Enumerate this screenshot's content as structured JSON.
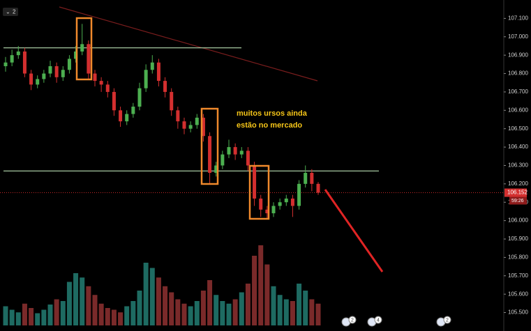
{
  "chart_data": {
    "type": "candlestick",
    "tag": "2",
    "annotations": [
      "muitos ursos ainda",
      "estão no mercado"
    ],
    "last_price_label": "106.152",
    "countdown": "59:26",
    "event_badges": [
      "2",
      "4",
      "2"
    ],
    "levels": [
      106.94,
      106.27
    ],
    "up_color": "#4caf50",
    "down_color": "#d32f2f",
    "volume_up_color": "#1e6b62",
    "volume_down_color": "#7a2a2a",
    "ylim": [
      105.43,
      107.2
    ],
    "yticks": [
      {
        "value": 107.1,
        "label": "107.100"
      },
      {
        "value": 107.0,
        "label": "107.000"
      },
      {
        "value": 106.9,
        "label": "106.900"
      },
      {
        "value": 106.8,
        "label": "106.800"
      },
      {
        "value": 106.7,
        "label": "106.700"
      },
      {
        "value": 106.6,
        "label": "106.600"
      },
      {
        "value": 106.5,
        "label": "106.500"
      },
      {
        "value": 106.4,
        "label": "106.400"
      },
      {
        "value": 106.3,
        "label": "106.300"
      },
      {
        "value": 106.2,
        "label": "106.200"
      },
      {
        "value": 106.1,
        "label": "106.100"
      },
      {
        "value": 106.0,
        "label": "106.000"
      },
      {
        "value": 105.9,
        "label": "105.900"
      },
      {
        "value": 105.8,
        "label": "105.800"
      },
      {
        "value": 105.7,
        "label": "105.700"
      },
      {
        "value": 105.6,
        "label": "105.600"
      },
      {
        "value": 105.5,
        "label": "105.500"
      }
    ],
    "open": [
      106.84,
      106.86,
      106.9,
      106.92,
      106.8,
      106.74,
      106.77,
      106.8,
      106.84,
      106.78,
      106.82,
      106.88,
      106.92,
      106.96,
      106.8,
      106.76,
      106.74,
      106.7,
      106.6,
      106.54,
      106.58,
      106.62,
      106.72,
      106.82,
      106.86,
      106.76,
      106.7,
      106.6,
      106.54,
      106.5,
      106.52,
      106.56,
      106.46,
      106.26,
      106.3,
      106.36,
      106.4,
      106.36,
      106.38,
      106.3,
      106.12,
      106.06,
      106.04,
      106.08,
      106.1,
      106.12,
      106.08,
      106.2,
      106.26,
      106.2
    ],
    "high": [
      106.89,
      106.93,
      106.95,
      106.94,
      106.82,
      106.79,
      106.82,
      106.87,
      106.86,
      106.84,
      106.9,
      106.95,
      107.07,
      106.98,
      106.82,
      106.78,
      106.76,
      106.72,
      106.62,
      106.6,
      106.64,
      106.75,
      106.85,
      106.9,
      106.88,
      106.78,
      106.72,
      106.62,
      106.56,
      106.54,
      106.58,
      106.58,
      106.48,
      106.32,
      106.38,
      106.44,
      106.42,
      106.4,
      106.4,
      106.32,
      106.14,
      106.08,
      106.1,
      106.12,
      106.14,
      106.14,
      106.22,
      106.3,
      106.28,
      106.21
    ],
    "low": [
      106.81,
      106.84,
      106.88,
      106.78,
      106.71,
      106.72,
      106.75,
      106.78,
      106.75,
      106.76,
      106.8,
      106.86,
      106.9,
      106.77,
      106.73,
      106.7,
      106.67,
      106.57,
      106.51,
      106.52,
      106.56,
      106.6,
      106.7,
      106.8,
      106.73,
      106.67,
      106.57,
      106.5,
      106.47,
      106.48,
      106.5,
      106.43,
      106.2,
      106.24,
      106.28,
      106.34,
      106.33,
      106.34,
      106.27,
      106.08,
      106.02,
      106.01,
      106.02,
      106.06,
      106.08,
      106.02,
      106.06,
      106.18,
      106.16,
      106.14
    ],
    "close": [
      106.86,
      106.9,
      106.92,
      106.8,
      106.74,
      106.77,
      106.8,
      106.84,
      106.78,
      106.82,
      106.88,
      106.92,
      106.96,
      106.8,
      106.76,
      106.74,
      106.7,
      106.6,
      106.54,
      106.58,
      106.62,
      106.72,
      106.82,
      106.86,
      106.76,
      106.7,
      106.6,
      106.54,
      106.5,
      106.52,
      106.56,
      106.46,
      106.26,
      106.3,
      106.36,
      106.4,
      106.36,
      106.38,
      106.3,
      106.12,
      106.06,
      106.04,
      106.08,
      106.1,
      106.12,
      106.08,
      106.2,
      106.26,
      106.2,
      106.152
    ],
    "volume": [
      22,
      18,
      15,
      25,
      20,
      14,
      18,
      24,
      30,
      28,
      50,
      60,
      55,
      45,
      35,
      25,
      20,
      18,
      15,
      22,
      28,
      40,
      72,
      66,
      55,
      45,
      38,
      30,
      25,
      22,
      28,
      40,
      52,
      35,
      28,
      25,
      30,
      38,
      48,
      80,
      92,
      70,
      45,
      35,
      30,
      28,
      48,
      40,
      30,
      25
    ]
  }
}
